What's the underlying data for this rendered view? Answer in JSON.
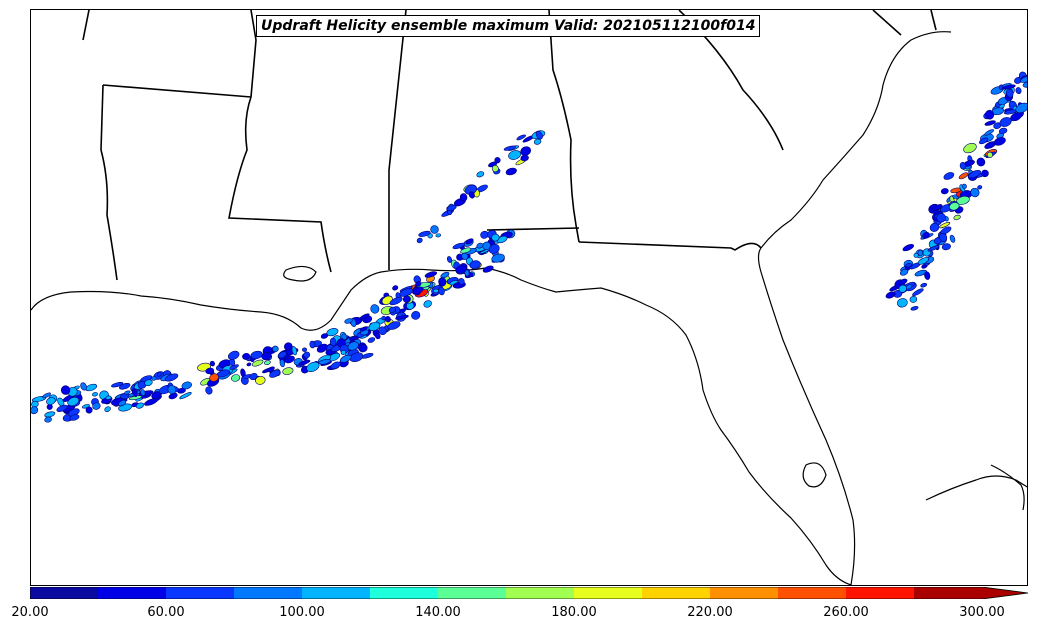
{
  "title": "Updraft Helicity ensemble maximum Valid: 202105112100f014",
  "colorbar": {
    "colors": [
      "#0a0aa0",
      "#0000e6",
      "#0a37ff",
      "#0078ff",
      "#00b4ff",
      "#1effdc",
      "#5aff96",
      "#a0ff50",
      "#e6ff1e",
      "#ffd200",
      "#ff9100",
      "#ff5000",
      "#ff1400",
      "#aa0000"
    ],
    "labels": [
      "20.00",
      "60.00",
      "100.00",
      "140.00",
      "180.00",
      "220.00",
      "260.00",
      "300.00"
    ],
    "extend": "max"
  },
  "map": {
    "coastline_color": "#000000",
    "state_border_color": "#000000"
  }
}
